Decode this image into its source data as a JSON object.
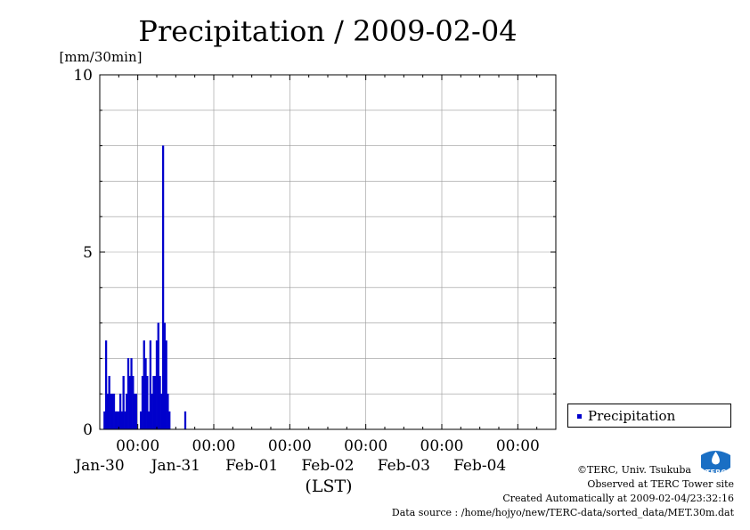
{
  "chart_data": {
    "type": "bar",
    "title": "Precipitation / 2009-02-04",
    "ylabel": "[mm/30min]",
    "xlabel": "(LST)",
    "ylim": [
      0,
      10
    ],
    "yticks": [
      "0",
      "5",
      "10"
    ],
    "xlim": [
      "2009-01-29T12:00",
      "2009-02-04T12:00"
    ],
    "xtick_time": "00:00",
    "xtick_dates": [
      "Jan-30",
      "Jan-31",
      "Feb-01",
      "Feb-02",
      "Feb-03",
      "Feb-04"
    ],
    "grid": true,
    "legend_position": "right",
    "series": [
      {
        "name": "Precipitation",
        "color": "#0000cc",
        "points": [
          [
            "2009-01-29T13:30",
            0.5
          ],
          [
            "2009-01-29T14:00",
            2.5
          ],
          [
            "2009-01-29T14:30",
            1.0
          ],
          [
            "2009-01-29T15:00",
            1.5
          ],
          [
            "2009-01-29T15:30",
            1.0
          ],
          [
            "2009-01-29T16:00",
            1.0
          ],
          [
            "2009-01-29T16:30",
            1.0
          ],
          [
            "2009-01-29T17:00",
            0.5
          ],
          [
            "2009-01-29T17:30",
            0.5
          ],
          [
            "2009-01-29T18:00",
            0.5
          ],
          [
            "2009-01-29T18:30",
            1.0
          ],
          [
            "2009-01-29T19:00",
            0.5
          ],
          [
            "2009-01-29T19:30",
            1.5
          ],
          [
            "2009-01-29T20:00",
            0.5
          ],
          [
            "2009-01-29T20:30",
            1.0
          ],
          [
            "2009-01-29T21:00",
            2.0
          ],
          [
            "2009-01-29T21:30",
            1.5
          ],
          [
            "2009-01-29T22:00",
            2.0
          ],
          [
            "2009-01-29T22:30",
            1.5
          ],
          [
            "2009-01-29T23:00",
            1.0
          ],
          [
            "2009-01-29T23:30",
            1.0
          ],
          [
            "2009-01-30T01:00",
            0.5
          ],
          [
            "2009-01-30T01:30",
            1.5
          ],
          [
            "2009-01-30T02:00",
            2.5
          ],
          [
            "2009-01-30T02:30",
            2.0
          ],
          [
            "2009-01-30T03:00",
            1.5
          ],
          [
            "2009-01-30T03:30",
            0.5
          ],
          [
            "2009-01-30T04:00",
            2.5
          ],
          [
            "2009-01-30T04:30",
            1.0
          ],
          [
            "2009-01-30T05:00",
            1.5
          ],
          [
            "2009-01-30T05:30",
            1.5
          ],
          [
            "2009-01-30T06:00",
            2.5
          ],
          [
            "2009-01-30T06:30",
            3.0
          ],
          [
            "2009-01-30T07:00",
            1.5
          ],
          [
            "2009-01-30T07:30",
            1.0
          ],
          [
            "2009-01-30T08:00",
            8.0
          ],
          [
            "2009-01-30T08:30",
            3.0
          ],
          [
            "2009-01-30T09:00",
            2.5
          ],
          [
            "2009-01-30T09:30",
            1.0
          ],
          [
            "2009-01-30T10:00",
            0.5
          ],
          [
            "2009-01-30T15:00",
            0.5
          ]
        ]
      }
    ]
  },
  "credits": {
    "copyright": "©TERC, Univ. Tsukuba",
    "observed": "Observed at TERC Tower site",
    "created": "Created Automatically at 2009-02-04/23:32:16",
    "source": "Data source : /home/hojyo/new/TERC-data/sorted_data/MET.30m.dat"
  },
  "logo": {
    "text": "TERC",
    "color": "#1a6fc4"
  }
}
